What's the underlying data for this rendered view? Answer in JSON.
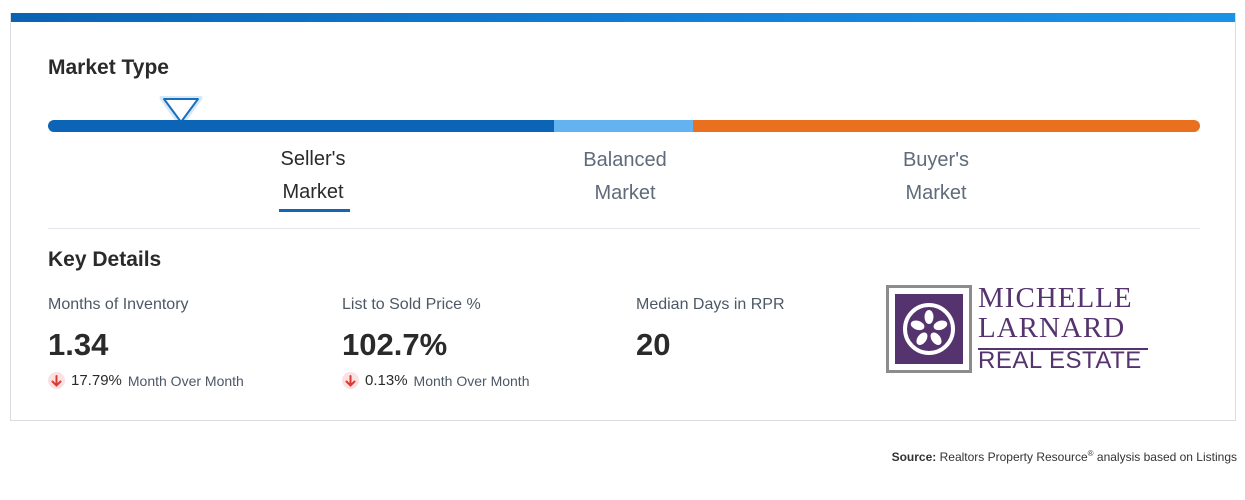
{
  "market_type": {
    "title": "Market Type",
    "labels": {
      "seller_line1": "Seller's",
      "seller_line2": "Market",
      "balanced_line1": "Balanced",
      "balanced_line2": "Market",
      "buyer_line1": "Buyer's",
      "buyer_line2": "Market"
    },
    "selected": "Seller's Market",
    "colors": {
      "seller": "#0b64b5",
      "balanced": "#62b3f0",
      "buyer": "#e8701e"
    }
  },
  "key_details": {
    "title": "Key Details",
    "stats": [
      {
        "label": "Months of Inventory",
        "value": "1.34",
        "change": "17.79%",
        "change_label": "Month Over Month",
        "direction": "down"
      },
      {
        "label": "List to Sold Price %",
        "value": "102.7%",
        "change": "0.13%",
        "change_label": "Month Over Month",
        "direction": "down"
      },
      {
        "label": "Median Days in RPR",
        "value": "20"
      }
    ]
  },
  "logo": {
    "line1": "MICHELLE",
    "line2": "LARNARD",
    "line3": "REAL ESTATE",
    "color": "#55336e"
  },
  "source": {
    "prefix": "Source:",
    "text_a": "Realtors Property Resource",
    "sup": "®",
    "text_b": " analysis based on Listings"
  },
  "icons": {
    "marker": "triangle-marker-icon",
    "down": "arrow-down-icon"
  }
}
